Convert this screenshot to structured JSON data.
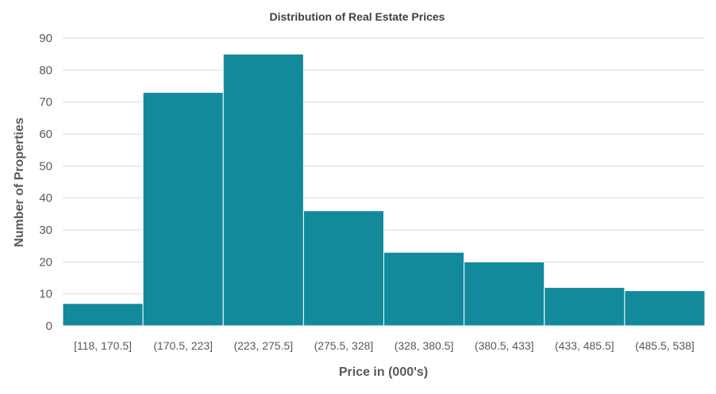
{
  "chart_data": {
    "type": "bar",
    "title": "Distribution of Real Estate Prices",
    "xlabel": "Price in (000's)",
    "ylabel": "Number of Properties",
    "categories": [
      "[118, 170.5]",
      "(170.5, 223]",
      "(223, 275.5]",
      "(275.5, 328]",
      "(328, 380.5]",
      "(380.5, 433]",
      "(433, 485.5]",
      "(485.5, 538]"
    ],
    "values": [
      7,
      73,
      85,
      36,
      23,
      20,
      12,
      11
    ],
    "ylim": [
      0,
      90
    ],
    "yticks": [
      0,
      10,
      20,
      30,
      40,
      50,
      60,
      70,
      80,
      90
    ],
    "grid": true,
    "colors": {
      "bar": "#138a9b",
      "grid": "#d9d9d9",
      "text": "#595959",
      "axis_label": "#595959"
    }
  }
}
